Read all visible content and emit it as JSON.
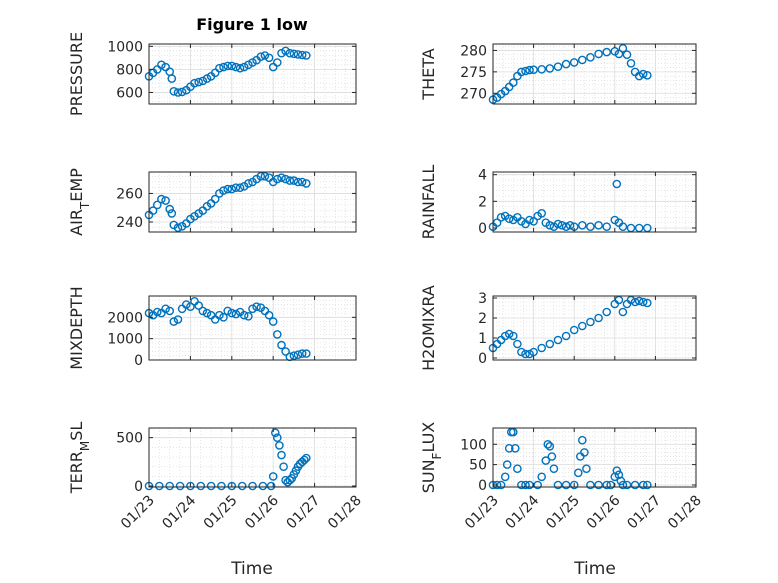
{
  "figure_title": "Figure 1 low",
  "x_axis_label": "Time",
  "x_tick_labels": [
    "01/23",
    "01/24",
    "01/25",
    "01/26",
    "01/27",
    "01/28"
  ],
  "marker_color": "#0072BD",
  "chart_data": [
    {
      "type": "scatter",
      "ylabel": "PRESSURE",
      "yticks": [
        600,
        800,
        1000
      ],
      "ylim": [
        500,
        1020
      ],
      "xlim": [
        0,
        5
      ],
      "grid": true,
      "x": [
        0,
        0.1,
        0.2,
        0.3,
        0.4,
        0.5,
        0.55,
        0.6,
        0.7,
        0.8,
        0.9,
        1.0,
        1.1,
        1.2,
        1.3,
        1.4,
        1.5,
        1.6,
        1.7,
        1.8,
        1.9,
        2.0,
        2.1,
        2.2,
        2.3,
        2.4,
        2.5,
        2.6,
        2.7,
        2.8,
        2.9,
        3.0,
        3.1,
        3.2,
        3.3,
        3.4,
        3.5,
        3.6,
        3.7,
        3.8
      ],
      "y": [
        740,
        770,
        800,
        840,
        820,
        780,
        720,
        610,
        600,
        605,
        620,
        650,
        680,
        690,
        700,
        720,
        740,
        770,
        810,
        820,
        830,
        830,
        820,
        810,
        820,
        840,
        860,
        880,
        910,
        920,
        900,
        820,
        860,
        940,
        960,
        940,
        935,
        930,
        925,
        920
      ]
    },
    {
      "type": "scatter",
      "ylabel": "THETA",
      "yticks": [
        270,
        275,
        280
      ],
      "ylim": [
        267.5,
        281.5
      ],
      "xlim": [
        0,
        5
      ],
      "grid": true,
      "x": [
        0,
        0.1,
        0.2,
        0.3,
        0.4,
        0.5,
        0.6,
        0.7,
        0.8,
        0.9,
        1.0,
        1.2,
        1.4,
        1.6,
        1.8,
        2.0,
        2.2,
        2.4,
        2.6,
        2.8,
        3.0,
        3.1,
        3.2,
        3.3,
        3.4,
        3.5,
        3.6,
        3.7,
        3.8
      ],
      "y": [
        268.5,
        269,
        269.8,
        270.5,
        271.5,
        272.5,
        274,
        275,
        275.2,
        275.4,
        275.5,
        275.6,
        275.8,
        276.2,
        276.8,
        277.2,
        277.8,
        278.4,
        279.2,
        279.6,
        279.8,
        279.2,
        280.5,
        279,
        277,
        275,
        274,
        274.5,
        274.2
      ]
    },
    {
      "type": "scatter",
      "ylabel": "AIR_TEMP",
      "yticks": [
        240,
        260
      ],
      "ylim": [
        233,
        275
      ],
      "xlim": [
        0,
        5
      ],
      "grid": true,
      "x": [
        0,
        0.1,
        0.2,
        0.3,
        0.4,
        0.5,
        0.55,
        0.6,
        0.7,
        0.8,
        0.9,
        1.0,
        1.1,
        1.2,
        1.3,
        1.4,
        1.5,
        1.6,
        1.7,
        1.8,
        1.9,
        2.0,
        2.1,
        2.2,
        2.3,
        2.4,
        2.5,
        2.6,
        2.7,
        2.8,
        2.9,
        3.0,
        3.1,
        3.2,
        3.3,
        3.4,
        3.5,
        3.6,
        3.7,
        3.8
      ],
      "y": [
        245,
        248,
        252,
        256,
        255,
        249,
        246,
        238,
        236,
        237,
        239,
        242,
        244,
        246,
        248,
        251,
        253,
        256,
        260,
        262,
        263,
        263,
        264,
        264,
        265,
        267,
        268,
        270,
        272,
        272,
        271,
        268,
        270,
        271,
        270,
        269,
        269,
        268,
        268,
        267
      ]
    },
    {
      "type": "scatter",
      "ylabel": "RAINFALL",
      "yticks": [
        0,
        2,
        4
      ],
      "ylim": [
        -0.3,
        4.2
      ],
      "xlim": [
        0,
        5
      ],
      "grid": true,
      "x": [
        0,
        0.1,
        0.2,
        0.3,
        0.4,
        0.5,
        0.6,
        0.7,
        0.8,
        0.9,
        1.0,
        1.1,
        1.2,
        1.3,
        1.4,
        1.5,
        1.6,
        1.7,
        1.8,
        1.9,
        2.0,
        2.2,
        2.4,
        2.6,
        2.8,
        3.0,
        3.05,
        3.1,
        3.2,
        3.4,
        3.6,
        3.8
      ],
      "y": [
        0.1,
        0.4,
        0.8,
        0.9,
        0.7,
        0.6,
        0.8,
        0.5,
        0.3,
        0.6,
        0.5,
        0.9,
        1.1,
        0.4,
        0.2,
        0.1,
        0.3,
        0.2,
        0.1,
        0.2,
        0.1,
        0.2,
        0.1,
        0.2,
        0.1,
        0.6,
        3.3,
        0.4,
        0.1,
        0,
        0,
        0
      ]
    },
    {
      "type": "scatter",
      "ylabel": "MIXDEPTH",
      "yticks": [
        0,
        1000,
        2000
      ],
      "ylim": [
        0,
        3000
      ],
      "xlim": [
        0,
        5
      ],
      "grid": true,
      "x": [
        0,
        0.1,
        0.2,
        0.3,
        0.4,
        0.5,
        0.6,
        0.7,
        0.8,
        0.9,
        1.0,
        1.1,
        1.2,
        1.3,
        1.4,
        1.5,
        1.6,
        1.7,
        1.8,
        1.9,
        2.0,
        2.1,
        2.2,
        2.3,
        2.4,
        2.5,
        2.6,
        2.7,
        2.8,
        2.9,
        3.0,
        3.1,
        3.2,
        3.3,
        3.4,
        3.5,
        3.6,
        3.7,
        3.8
      ],
      "y": [
        2200,
        2100,
        2250,
        2200,
        2400,
        2300,
        1800,
        1900,
        2400,
        2600,
        2500,
        2750,
        2550,
        2300,
        2200,
        2100,
        1900,
        2100,
        2000,
        2300,
        2200,
        2150,
        2250,
        2100,
        2050,
        2400,
        2500,
        2450,
        2300,
        2100,
        1800,
        1200,
        700,
        400,
        150,
        200,
        250,
        300,
        300
      ]
    },
    {
      "type": "scatter",
      "ylabel": "H2OMIXRA",
      "yticks": [
        0,
        1,
        2,
        3
      ],
      "ylim": [
        -0.1,
        3.1
      ],
      "xlim": [
        0,
        5
      ],
      "grid": true,
      "x": [
        0,
        0.1,
        0.2,
        0.3,
        0.4,
        0.5,
        0.6,
        0.7,
        0.8,
        0.9,
        1.0,
        1.2,
        1.4,
        1.6,
        1.8,
        2.0,
        2.2,
        2.4,
        2.6,
        2.8,
        3.0,
        3.1,
        3.2,
        3.3,
        3.4,
        3.5,
        3.6,
        3.7,
        3.8
      ],
      "y": [
        0.5,
        0.7,
        0.9,
        1.1,
        1.2,
        1.1,
        0.7,
        0.3,
        0.2,
        0.2,
        0.3,
        0.5,
        0.7,
        0.9,
        1.1,
        1.4,
        1.6,
        1.8,
        2.0,
        2.3,
        2.7,
        2.9,
        2.3,
        2.7,
        2.9,
        2.8,
        2.85,
        2.8,
        2.75
      ]
    },
    {
      "type": "scatter",
      "ylabel": "TERR_MSL",
      "yticks": [
        0,
        500
      ],
      "ylim": [
        -10,
        600
      ],
      "xlim": [
        0,
        5
      ],
      "grid": true,
      "x": [
        0,
        0.25,
        0.5,
        0.75,
        1.0,
        1.25,
        1.5,
        1.75,
        2.0,
        2.25,
        2.5,
        2.75,
        2.95,
        3.0,
        3.05,
        3.1,
        3.15,
        3.2,
        3.25,
        3.3,
        3.35,
        3.4,
        3.45,
        3.5,
        3.55,
        3.6,
        3.65,
        3.7,
        3.75,
        3.8
      ],
      "y": [
        0,
        0,
        0,
        0,
        0,
        0,
        0,
        0,
        0,
        0,
        0,
        0,
        0,
        100,
        550,
        500,
        420,
        320,
        200,
        60,
        40,
        60,
        80,
        120,
        160,
        200,
        230,
        250,
        270,
        290
      ]
    },
    {
      "type": "scatter",
      "ylabel": "SUN_FLUX",
      "yticks": [
        0,
        50,
        100
      ],
      "ylim": [
        -5,
        140
      ],
      "xlim": [
        0,
        5
      ],
      "grid": true,
      "x": [
        0,
        0.1,
        0.2,
        0.3,
        0.35,
        0.4,
        0.45,
        0.5,
        0.55,
        0.6,
        0.7,
        0.8,
        0.9,
        1.1,
        1.2,
        1.3,
        1.35,
        1.4,
        1.45,
        1.5,
        1.6,
        1.8,
        2.0,
        2.1,
        2.15,
        2.2,
        2.25,
        2.3,
        2.4,
        2.6,
        2.8,
        2.9,
        3.0,
        3.05,
        3.1,
        3.15,
        3.2,
        3.3,
        3.5,
        3.7,
        3.8
      ],
      "y": [
        0,
        0,
        0,
        20,
        50,
        90,
        130,
        130,
        90,
        40,
        0,
        0,
        0,
        0,
        20,
        60,
        100,
        95,
        70,
        40,
        0,
        0,
        0,
        30,
        70,
        110,
        80,
        40,
        0,
        0,
        0,
        0,
        20,
        35,
        25,
        10,
        0,
        0,
        0,
        0,
        0
      ]
    }
  ]
}
